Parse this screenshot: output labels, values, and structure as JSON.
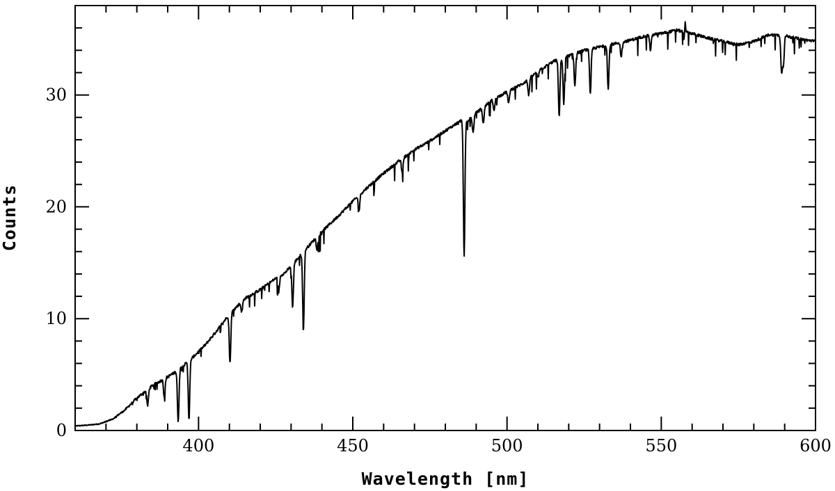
{
  "chart_data": {
    "type": "line",
    "title": "",
    "xlabel": "Wavelength [nm]",
    "ylabel": "Counts",
    "xlim": [
      360,
      600
    ],
    "ylim": [
      0,
      38
    ],
    "x_ticks": [
      400,
      450,
      500,
      550,
      600
    ],
    "y_ticks": [
      0,
      10,
      20,
      30
    ],
    "x_minor_step": 10,
    "y_minor_step": 2,
    "grid": false,
    "legend": "none",
    "line_color": "#000000",
    "series": [
      {
        "continuum": [
          [
            360,
            0.4
          ],
          [
            365,
            0.5
          ],
          [
            368,
            0.6
          ],
          [
            372,
            1.0
          ],
          [
            376,
            1.8
          ],
          [
            380,
            2.9
          ],
          [
            385,
            4.0
          ],
          [
            390,
            4.8
          ],
          [
            393,
            5.3
          ],
          [
            398,
            6.5
          ],
          [
            402,
            7.6
          ],
          [
            405,
            8.6
          ],
          [
            410,
            10.4
          ],
          [
            415,
            11.8
          ],
          [
            420,
            12.6
          ],
          [
            425,
            13.6
          ],
          [
            428,
            14.1
          ],
          [
            431,
            15.0
          ],
          [
            435,
            16.3
          ],
          [
            440,
            17.8
          ],
          [
            445,
            19.1
          ],
          [
            450,
            20.5
          ],
          [
            455,
            21.8
          ],
          [
            460,
            23.0
          ],
          [
            465,
            24.1
          ],
          [
            470,
            25.1
          ],
          [
            475,
            25.9
          ],
          [
            480,
            26.8
          ],
          [
            485,
            27.7
          ],
          [
            487,
            27.6
          ],
          [
            490,
            28.4
          ],
          [
            495,
            29.5
          ],
          [
            500,
            30.3
          ],
          [
            505,
            31.0
          ],
          [
            510,
            32.1
          ],
          [
            515,
            33.0
          ],
          [
            520,
            33.5
          ],
          [
            525,
            34.0
          ],
          [
            530,
            34.3
          ],
          [
            535,
            34.6
          ],
          [
            540,
            34.9
          ],
          [
            545,
            35.3
          ],
          [
            550,
            35.5
          ],
          [
            555,
            35.8
          ],
          [
            560,
            35.5
          ],
          [
            565,
            35.1
          ],
          [
            570,
            34.8
          ],
          [
            575,
            34.5
          ],
          [
            580,
            34.8
          ],
          [
            585,
            35.4
          ],
          [
            590,
            35.3
          ],
          [
            595,
            35.0
          ],
          [
            600,
            34.8
          ]
        ],
        "absorption_lines": [
          [
            383.5,
            2.2
          ],
          [
            388.9,
            3.0
          ],
          [
            393.4,
            0.7
          ],
          [
            396.9,
            1.0
          ],
          [
            410.2,
            6.0
          ],
          [
            414.0,
            10.6
          ],
          [
            426.0,
            12.4
          ],
          [
            430.5,
            11.0
          ],
          [
            434.0,
            9.0
          ],
          [
            438.4,
            16.2
          ],
          [
            452.0,
            19.6
          ],
          [
            466.0,
            23.0
          ],
          [
            486.1,
            15.5
          ],
          [
            489.0,
            26.6
          ],
          [
            492.3,
            27.4
          ],
          [
            495.8,
            28.6
          ],
          [
            500.5,
            29.2
          ],
          [
            507.0,
            30.0
          ],
          [
            510.0,
            31.5
          ],
          [
            516.9,
            28.0
          ],
          [
            518.4,
            29.2
          ],
          [
            522.0,
            30.8
          ],
          [
            527.0,
            30.0
          ],
          [
            532.8,
            30.5
          ],
          [
            537.0,
            33.4
          ],
          [
            546.5,
            34.0
          ],
          [
            557.5,
            34.5
          ],
          [
            589.0,
            32.0
          ],
          [
            589.6,
            32.8
          ]
        ],
        "emission_lines": [
          [
            557.7,
            37.2
          ]
        ]
      }
    ]
  }
}
